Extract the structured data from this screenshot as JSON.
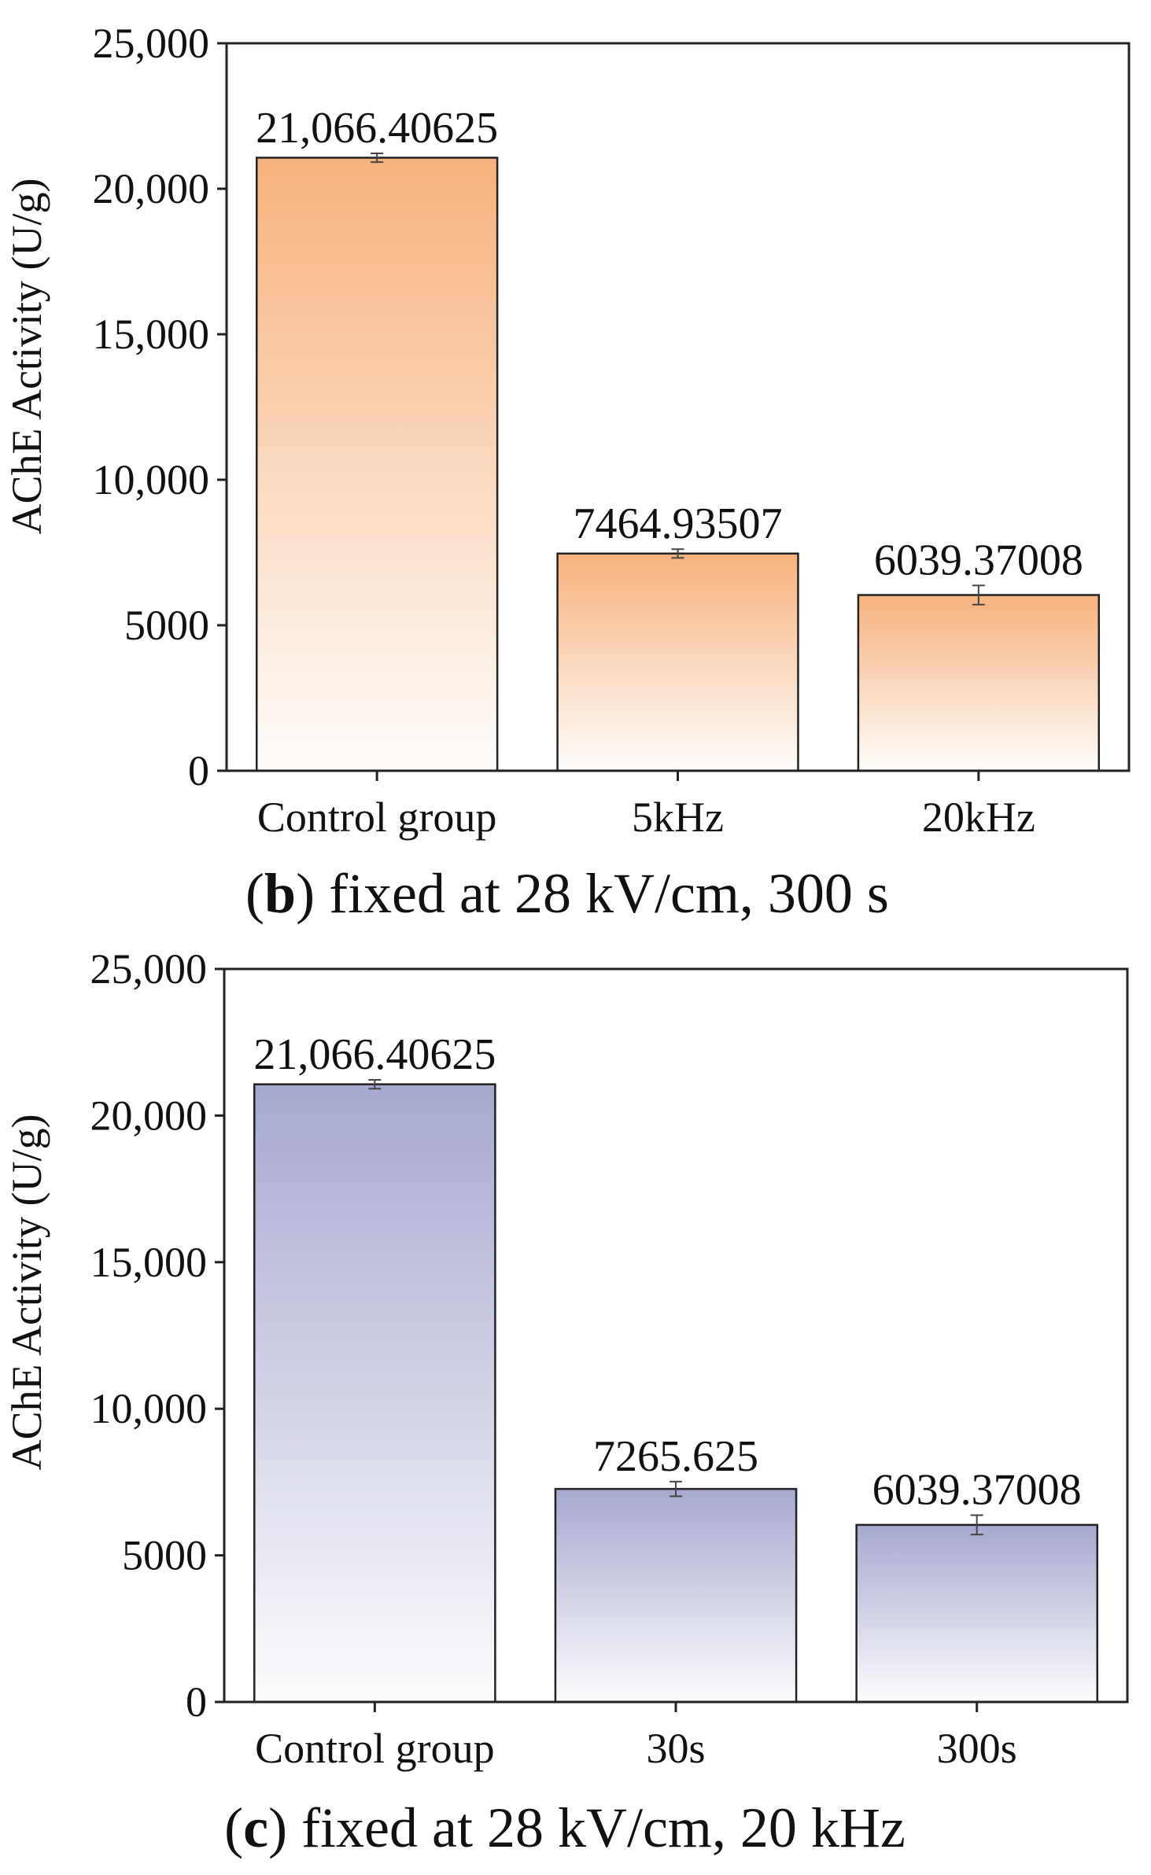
{
  "chart_data": [
    {
      "id": "b",
      "type": "bar",
      "categories": [
        "Control group",
        "5kHz",
        "20kHz"
      ],
      "values": [
        21066.40625,
        7464.93507,
        6039.37008
      ],
      "data_labels": [
        "21,066.40625",
        "7464.93507",
        "6039.37008"
      ],
      "errors": [
        150,
        150,
        330
      ],
      "ylabel": "AChE Activity (U/g)",
      "xlabel": "",
      "ylim": [
        0,
        25000
      ],
      "yticks": [
        0,
        5000,
        10000,
        15000,
        20000,
        25000
      ],
      "ytick_labels": [
        "0",
        "5000",
        "10,000",
        "15,000",
        "20,000",
        "25,000"
      ],
      "caption_letter": "b",
      "caption_text": " fixed at 28 kV/cm, 300 s",
      "bar_color": "#f6b27d",
      "grid": false
    },
    {
      "id": "c",
      "type": "bar",
      "categories": [
        "Control group",
        "30s",
        "300s"
      ],
      "values": [
        21066.40625,
        7265.625,
        6039.37008
      ],
      "data_labels": [
        "21,066.40625",
        "7265.625",
        "6039.37008"
      ],
      "errors": [
        150,
        250,
        330
      ],
      "ylabel": "AChE Activity (U/g)",
      "xlabel": "",
      "ylim": [
        0,
        25000
      ],
      "yticks": [
        0,
        5000,
        10000,
        15000,
        20000,
        25000
      ],
      "ytick_labels": [
        "0",
        "5000",
        "10,000",
        "15,000",
        "20,000",
        "25,000"
      ],
      "caption_letter": "c",
      "caption_text": " fixed at 28 kV/cm, 20 kHz",
      "bar_color": "#a7a8d0",
      "grid": false
    }
  ]
}
